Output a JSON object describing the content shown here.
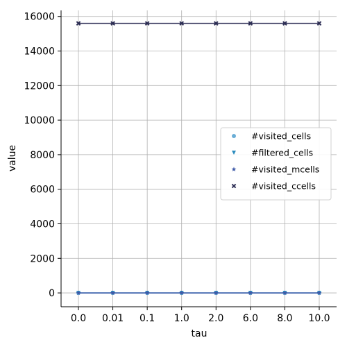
{
  "chart_data": {
    "type": "line",
    "title": "",
    "xlabel": "tau",
    "ylabel": "value",
    "x_categories": [
      "0.0",
      "0.01",
      "0.1",
      "1.0",
      "2.0",
      "6.0",
      "8.0",
      "10.0"
    ],
    "ylim": [
      -800,
      16350
    ],
    "y_ticks": [
      0,
      2000,
      4000,
      6000,
      8000,
      10000,
      12000,
      14000,
      16000
    ],
    "grid": true,
    "legend_position": "center-right",
    "series": [
      {
        "name": "#visited_cells",
        "marker": "circle",
        "color": "#6baed6",
        "values": [
          0,
          0,
          0,
          0,
          0,
          0,
          0,
          0
        ]
      },
      {
        "name": "#filtered_cells",
        "marker": "triangle-down",
        "color": "#2b8cbe",
        "values": [
          0,
          0,
          0,
          0,
          0,
          0,
          0,
          0
        ]
      },
      {
        "name": "#visited_mcells",
        "marker": "star",
        "color": "#3f5aa8",
        "values": [
          0,
          0,
          0,
          0,
          0,
          0,
          0,
          0
        ]
      },
      {
        "name": "#visited_ccells",
        "marker": "x",
        "color": "#2c2d54",
        "values": [
          15600,
          15600,
          15600,
          15600,
          15600,
          15600,
          15600,
          15600
        ]
      }
    ]
  }
}
